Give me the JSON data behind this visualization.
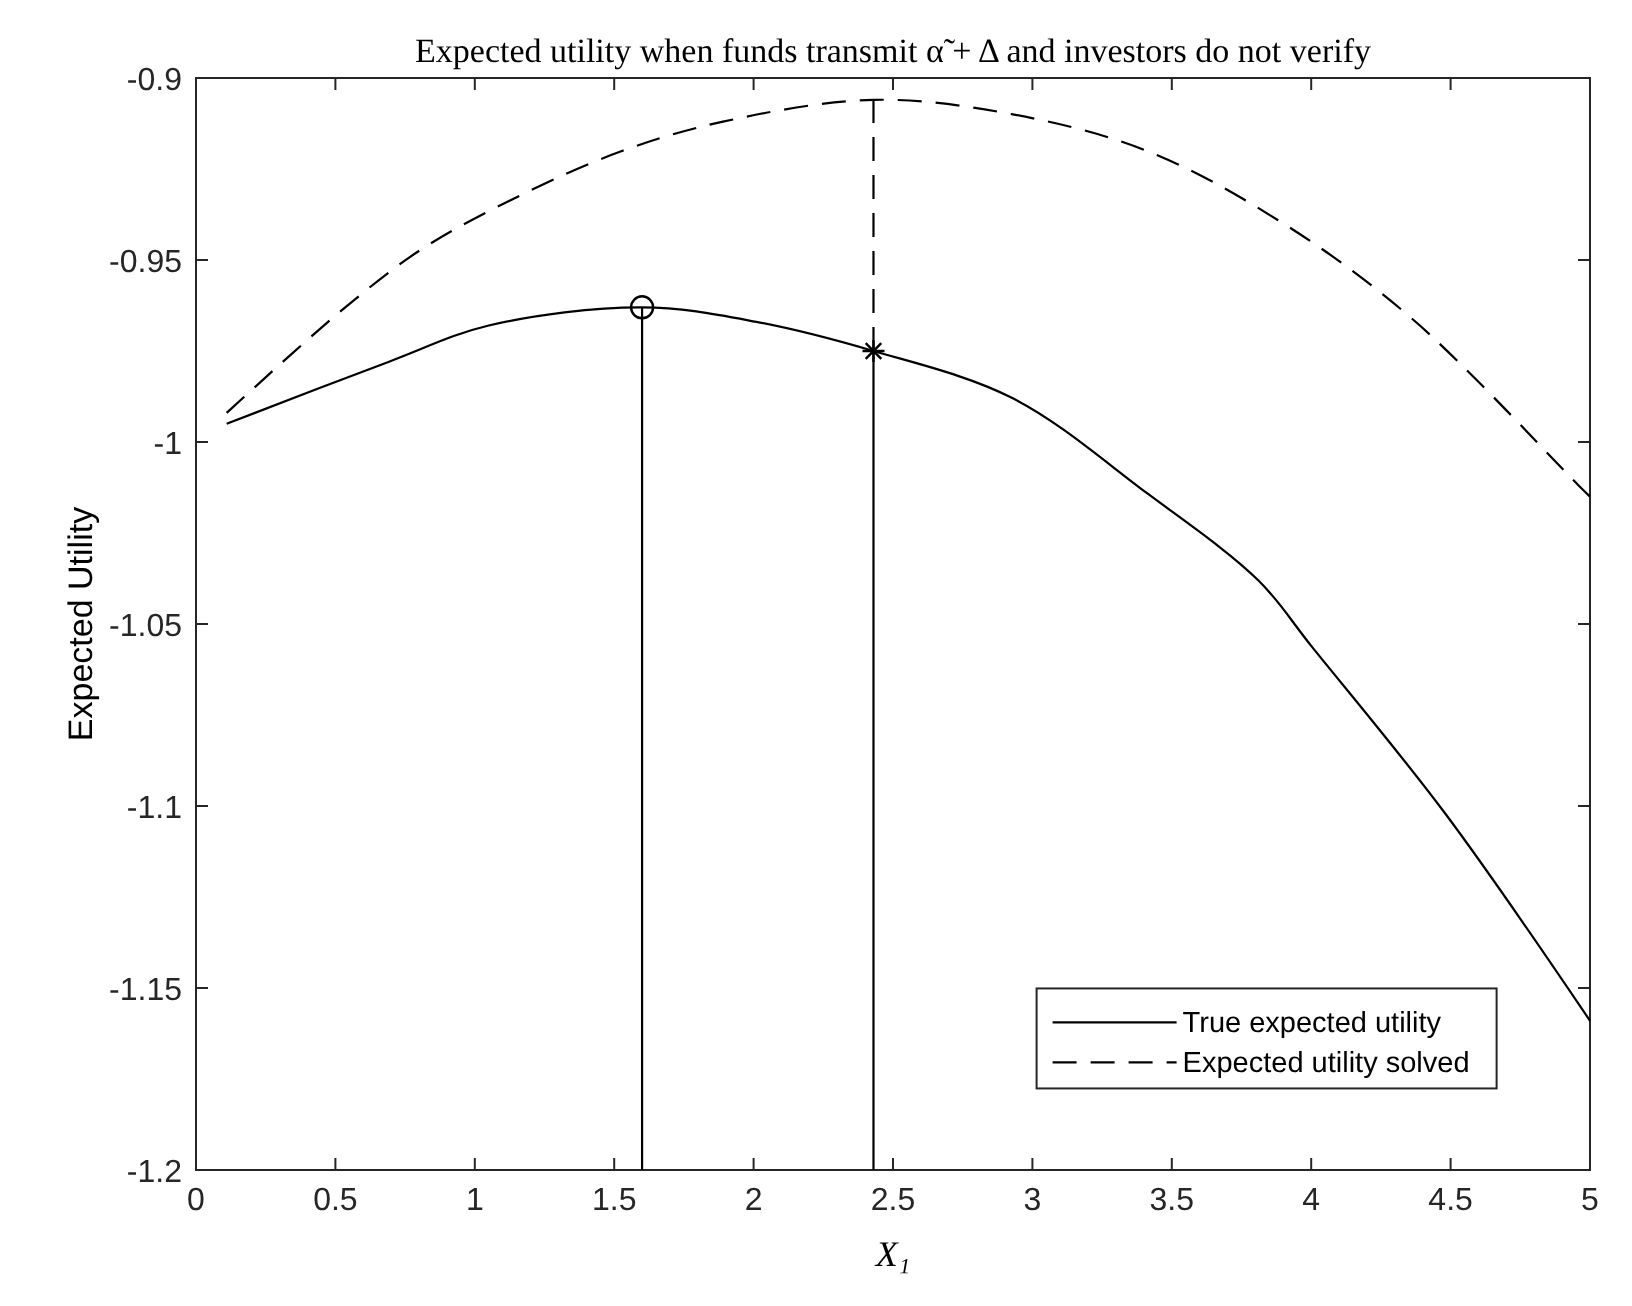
{
  "chart_data": {
    "type": "line",
    "title": "Expected utility when funds transmit α̃ + Δ and investors do not verify",
    "xlabel": "X₁",
    "ylabel": "Expected Utility",
    "xlim": [
      0,
      5
    ],
    "xticks": [
      0,
      0.5,
      1,
      1.5,
      2,
      2.5,
      3,
      3.5,
      4,
      4.5,
      5
    ],
    "ylim": [
      -1.2,
      -0.9
    ],
    "yticks": [
      {
        "value": -1.2,
        "label": "-1.2"
      },
      {
        "value": -1.15,
        "label": "-1.15"
      },
      {
        "value": -1.1,
        "label": "-1.1"
      },
      {
        "value": -1.05,
        "label": "-1.05"
      },
      {
        "value": -1,
        "label": "-1"
      },
      {
        "value": -0.95,
        "label": "-0.95"
      },
      {
        "value": -0.9,
        "label": "-0.9"
      }
    ],
    "grid": false,
    "legend": "bottom right",
    "series": [
      {
        "name": "True expected utility",
        "color": "#000000",
        "line_style": "solid",
        "x": [
          0.11,
          0.69,
          1.05,
          1.6,
          2.01,
          2.43,
          2.93,
          3.41,
          3.81,
          4.0,
          4.48,
          5.0
        ],
        "values": [
          -0.995,
          -0.978,
          -0.968,
          -0.963,
          -0.967,
          -0.975,
          -0.988,
          -1.014,
          -1.038,
          -1.056,
          -1.102,
          -1.159
        ]
      },
      {
        "name": "Expected utility solved",
        "color": "#000000",
        "line_style": "dashed",
        "x": [
          0.11,
          0.52,
          0.81,
          1.17,
          1.53,
          1.89,
          2.43,
          2.93,
          3.41,
          3.88,
          4.36,
          4.96,
          5.0
        ],
        "values": [
          -0.992,
          -0.964,
          -0.947,
          -0.932,
          -0.92,
          -0.912,
          -0.906,
          -0.91,
          -0.92,
          -0.939,
          -0.966,
          -1.012,
          -1.015
        ]
      },
      {
        "color": "#000000",
        "line_style": "solid",
        "x": [
          1.6,
          1.6
        ],
        "values": [
          -1.2,
          -0.963
        ]
      },
      {
        "color": "#000000",
        "line_style": "solid",
        "x": [
          2.43,
          2.43
        ],
        "values": [
          -1.2,
          -0.975
        ]
      },
      {
        "color": "#000000",
        "line_style": "dashed",
        "x": [
          2.43,
          2.43
        ],
        "values": [
          -0.975,
          -0.906
        ]
      },
      {
        "type": "scatter",
        "marker": "circle",
        "color": "#000000",
        "x": [
          1.6
        ],
        "values": [
          -0.963
        ]
      },
      {
        "type": "scatter",
        "marker": "cross",
        "color": "#000000",
        "x": [
          2.43
        ],
        "values": [
          -0.975
        ]
      }
    ]
  }
}
